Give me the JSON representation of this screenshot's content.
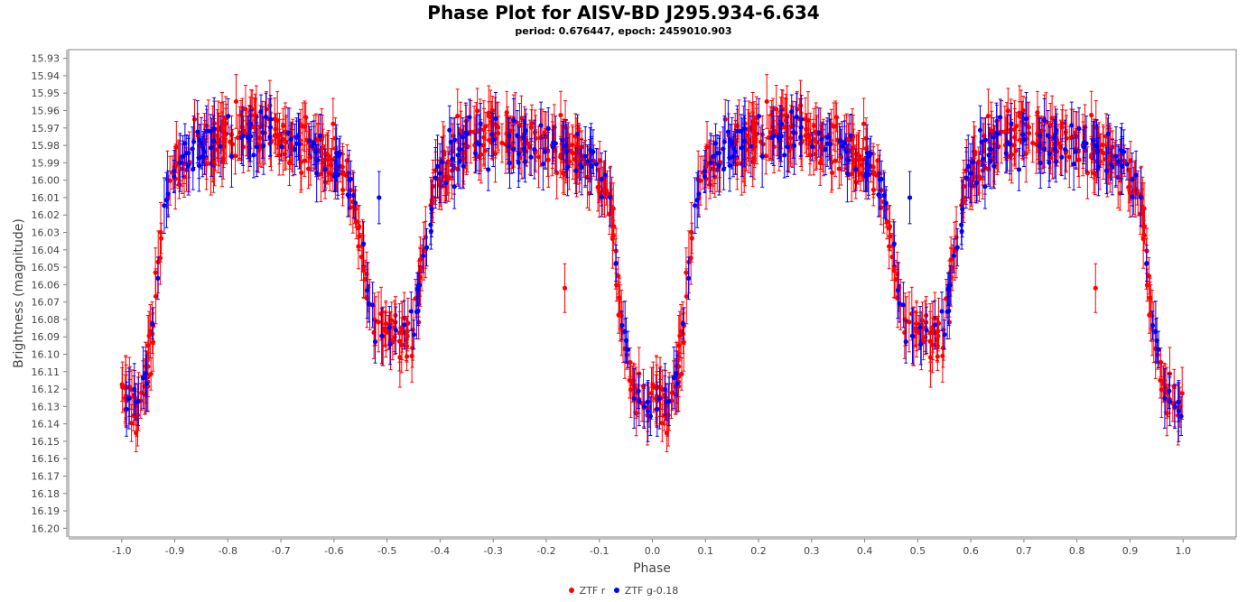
{
  "chart_data": {
    "type": "scatter",
    "title": "Phase Plot for AISV-BD J295.934-6.634",
    "subtitle": "period: 0.676447, epoch: 2459010.903",
    "xlabel": "Phase",
    "ylabel": "Brightness (magnitude)",
    "xlim": [
      -1.1,
      1.1
    ],
    "ylim": [
      16.205,
      15.925
    ],
    "y_inverted": true,
    "x_ticks": [
      "-1.0",
      "-0.9",
      "-0.8",
      "-0.7",
      "-0.6",
      "-0.5",
      "-0.4",
      "-0.3",
      "-0.2",
      "-0.1",
      "0.0",
      "0.1",
      "0.2",
      "0.3",
      "0.4",
      "0.5",
      "0.6",
      "0.7",
      "0.8",
      "0.9",
      "1.0"
    ],
    "y_ticks": [
      "15.93",
      "15.94",
      "15.95",
      "15.96",
      "15.97",
      "15.98",
      "15.99",
      "16.00",
      "16.01",
      "16.02",
      "16.03",
      "16.04",
      "16.05",
      "16.06",
      "16.07",
      "16.08",
      "16.09",
      "16.10",
      "16.11",
      "16.12",
      "16.13",
      "16.14",
      "16.15",
      "16.16",
      "16.17",
      "16.18",
      "16.19",
      "16.20"
    ],
    "grid": false,
    "legend_position": "bottom-center",
    "light_curve_template": {
      "phase": [
        0.0,
        0.03,
        0.055,
        0.065,
        0.075,
        0.09,
        0.15,
        0.25,
        0.35,
        0.41,
        0.43,
        0.45,
        0.48,
        0.52,
        0.55,
        0.57,
        0.59,
        0.65,
        0.75,
        0.85,
        0.91,
        0.925,
        0.935,
        0.945,
        0.97,
        1.0
      ],
      "magnitude": [
        16.13,
        16.128,
        16.1,
        16.06,
        16.03,
        15.995,
        15.98,
        15.97,
        15.98,
        15.99,
        16.0,
        16.04,
        16.085,
        16.095,
        16.085,
        16.04,
        16.0,
        15.975,
        15.975,
        15.985,
        16.0,
        16.02,
        16.06,
        16.09,
        16.125,
        16.13
      ]
    },
    "series": [
      {
        "name": "ZTF r",
        "color": "#ff0000",
        "offset": 0.0,
        "scatter": 0.012,
        "points_per_cycle": 520,
        "seed": 7
      },
      {
        "name": "ZTF g-0.18",
        "color": "#0000ff",
        "offset": 0.0,
        "scatter": 0.012,
        "points_per_cycle": 190,
        "seed": 19
      }
    ],
    "outliers": [
      {
        "series": "ZTF r",
        "phase": -0.165,
        "magnitude": 16.062,
        "error": 0.014
      },
      {
        "series": "ZTF r",
        "phase": 0.835,
        "magnitude": 16.062,
        "error": 0.014
      },
      {
        "series": "ZTF g-0.18",
        "phase": -0.515,
        "magnitude": 16.01,
        "error": 0.015
      },
      {
        "series": "ZTF g-0.18",
        "phase": 0.485,
        "magnitude": 16.01,
        "error": 0.015
      }
    ]
  },
  "legend": {
    "r_label": "ZTF r",
    "g_label": "ZTF g-0.18",
    "r_color": "#ff0000",
    "g_color": "#0000ff"
  }
}
